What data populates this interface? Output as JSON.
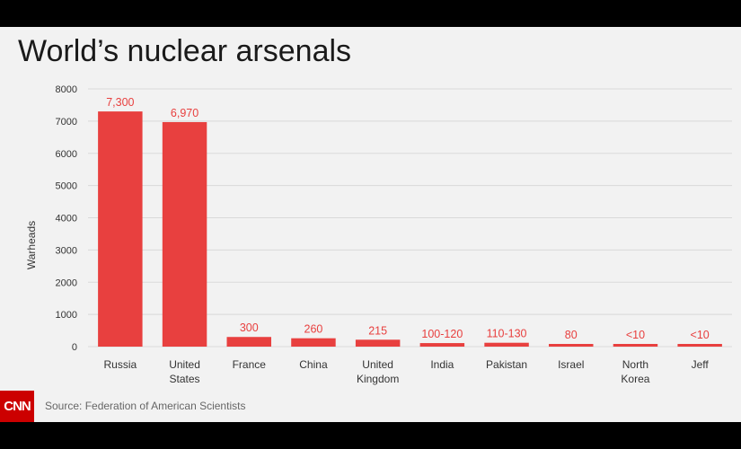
{
  "colors": {
    "bar": "#e8403f",
    "grid": "#d9d9d9",
    "background": "#f2f2f2",
    "brand": "#cc0000"
  },
  "footer": {
    "logo_text": "CNN",
    "source": "Source: Federation of American Scientists"
  },
  "chart_data": {
    "type": "bar",
    "title": "World’s nuclear arsenals",
    "xlabel": "",
    "ylabel": "Warheads",
    "ylim": [
      0,
      8000
    ],
    "yticks": [
      "0",
      "1000",
      "2000",
      "3000",
      "4000",
      "5000",
      "6000",
      "7000",
      "8000"
    ],
    "grid": true,
    "categories": [
      [
        "Russia"
      ],
      [
        "United",
        "States"
      ],
      [
        "France"
      ],
      [
        "China"
      ],
      [
        "United",
        "Kingdom"
      ],
      [
        "India"
      ],
      [
        "Pakistan"
      ],
      [
        "Israel"
      ],
      [
        "North",
        "Korea"
      ],
      [
        "Jeff"
      ]
    ],
    "values": [
      7300,
      6970,
      300,
      260,
      215,
      110,
      120,
      80,
      10,
      10
    ],
    "data_labels": [
      "7,300",
      "6,970",
      "300",
      "260",
      "215",
      "100-120",
      "110-130",
      "80",
      "<10",
      "<10"
    ]
  }
}
